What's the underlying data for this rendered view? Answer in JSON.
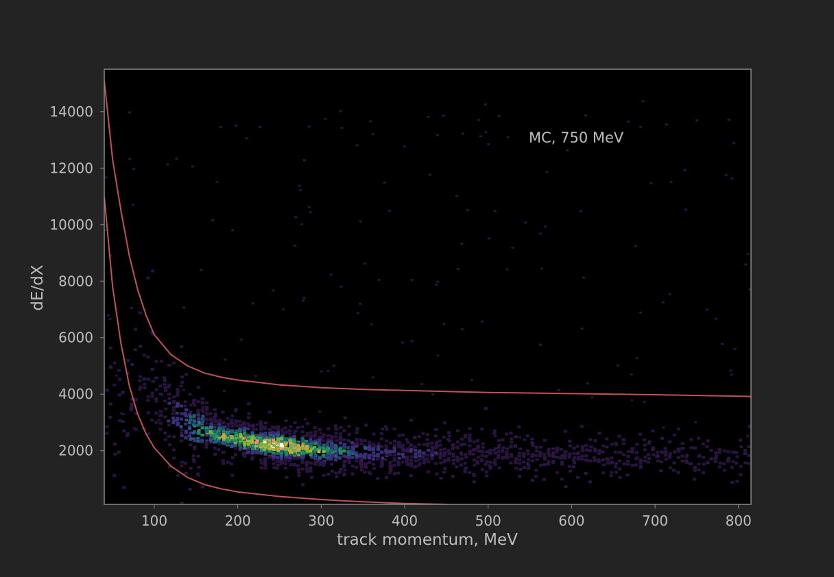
{
  "colors": {
    "background": "#232323",
    "plot_background": "#000000",
    "frame": "#8a8a8a",
    "text": "#bdbdbd",
    "curve": "#c0525a",
    "density_scale": [
      "#000000",
      "#2a1440",
      "#3b2e7a",
      "#1f5d78",
      "#1f8a64",
      "#6fb53c",
      "#c9a93a",
      "#e59080",
      "#ffffff"
    ]
  },
  "chart_data": {
    "type": "heatmap",
    "title": "",
    "annotation": "MC, 750 MeV",
    "xlabel": "track momentum, MeV",
    "ylabel": "dE/dX",
    "xlim": [
      40,
      815
    ],
    "ylim": [
      100,
      15500
    ],
    "x_ticks": [
      100,
      200,
      300,
      400,
      500,
      600,
      700,
      800
    ],
    "y_ticks": [
      2000,
      4000,
      6000,
      8000,
      10000,
      12000,
      14000
    ],
    "grid": false,
    "density_ridge": [
      {
        "x": 60,
        "y": 3400,
        "density": 0.05
      },
      {
        "x": 90,
        "y": 4700,
        "density": 0.1
      },
      {
        "x": 110,
        "y": 3600,
        "density": 0.18
      },
      {
        "x": 130,
        "y": 3100,
        "density": 0.32
      },
      {
        "x": 150,
        "y": 2800,
        "density": 0.48
      },
      {
        "x": 175,
        "y": 2600,
        "density": 0.62
      },
      {
        "x": 200,
        "y": 2450,
        "density": 0.72
      },
      {
        "x": 225,
        "y": 2300,
        "density": 0.82
      },
      {
        "x": 245,
        "y": 2250,
        "density": 1.0
      },
      {
        "x": 270,
        "y": 2150,
        "density": 0.8
      },
      {
        "x": 300,
        "y": 2050,
        "density": 0.55
      },
      {
        "x": 350,
        "y": 2000,
        "density": 0.32
      },
      {
        "x": 400,
        "y": 1980,
        "density": 0.22
      },
      {
        "x": 450,
        "y": 1950,
        "density": 0.17
      },
      {
        "x": 500,
        "y": 1930,
        "density": 0.14
      },
      {
        "x": 550,
        "y": 1920,
        "density": 0.12
      },
      {
        "x": 600,
        "y": 1900,
        "density": 0.1
      },
      {
        "x": 650,
        "y": 1880,
        "density": 0.07
      },
      {
        "x": 700,
        "y": 1870,
        "density": 0.05
      },
      {
        "x": 750,
        "y": 1860,
        "density": 0.04
      },
      {
        "x": 800,
        "y": 1850,
        "density": 0.03
      }
    ],
    "series": [
      {
        "x": [
          40,
          50,
          60,
          70,
          80,
          90,
          100,
          120,
          140,
          160,
          180,
          200,
          250,
          300,
          350,
          400,
          500,
          600,
          700,
          815
        ],
        "values": [
          15100,
          12300,
          10500,
          8900,
          7700,
          6800,
          6100,
          5400,
          5000,
          4750,
          4600,
          4500,
          4330,
          4230,
          4170,
          4130,
          4060,
          4020,
          3980,
          3920
        ]
      },
      {
        "x": [
          40,
          50,
          60,
          70,
          80,
          90,
          100,
          120,
          140,
          160,
          180,
          200,
          250,
          300,
          350,
          400,
          450
        ],
        "values": [
          11000,
          7800,
          5800,
          4300,
          3300,
          2600,
          2100,
          1450,
          1050,
          800,
          650,
          540,
          380,
          270,
          190,
          130,
          100
        ]
      }
    ]
  }
}
